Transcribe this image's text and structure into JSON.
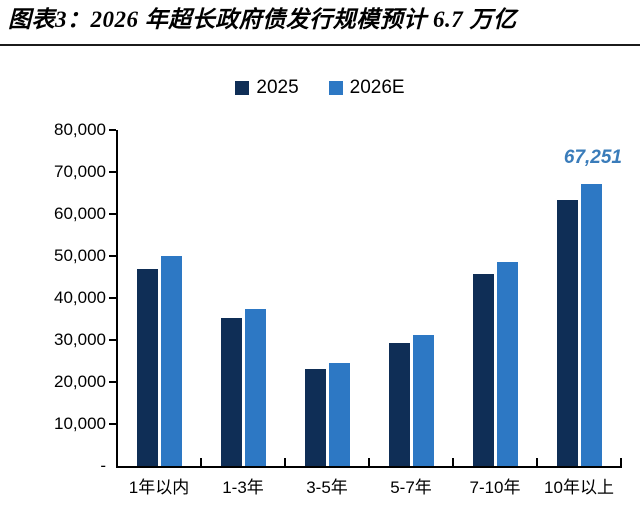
{
  "header": {
    "title": "图表3：2026 年超长政府债发行规模预计 6.7 万亿"
  },
  "legend": {
    "items": [
      {
        "label": "2025",
        "color": "#0f2e56"
      },
      {
        "label": "2026E",
        "color": "#2d78c4"
      }
    ]
  },
  "chart_data": {
    "type": "bar",
    "title": "图表3：2026 年超长政府债发行规模预计 6.7 万亿",
    "categories": [
      "1年以内",
      "1-3年",
      "3-5年",
      "5-7年",
      "7-10年",
      "10年以上"
    ],
    "series": [
      {
        "name": "2025",
        "color": "#0f2e56",
        "values": [
          47000,
          35200,
          23000,
          29300,
          45600,
          63300
        ]
      },
      {
        "name": "2026E",
        "color": "#2d78c4",
        "values": [
          50100,
          37400,
          24500,
          31200,
          48600,
          67251
        ]
      }
    ],
    "xlabel": "",
    "ylabel": "",
    "ylim": [
      0,
      80000
    ],
    "ytick_interval": 10000,
    "ytick_labels": [
      "-",
      "10,000",
      "20,000",
      "30,000",
      "40,000",
      "50,000",
      "60,000",
      "70,000",
      "80,000"
    ],
    "grid": false,
    "legend_position": "top",
    "annotation": {
      "text": "67,251",
      "series": "2026E",
      "category": "10年以上",
      "color": "#3a7cba"
    },
    "axis_color": "#000000"
  }
}
